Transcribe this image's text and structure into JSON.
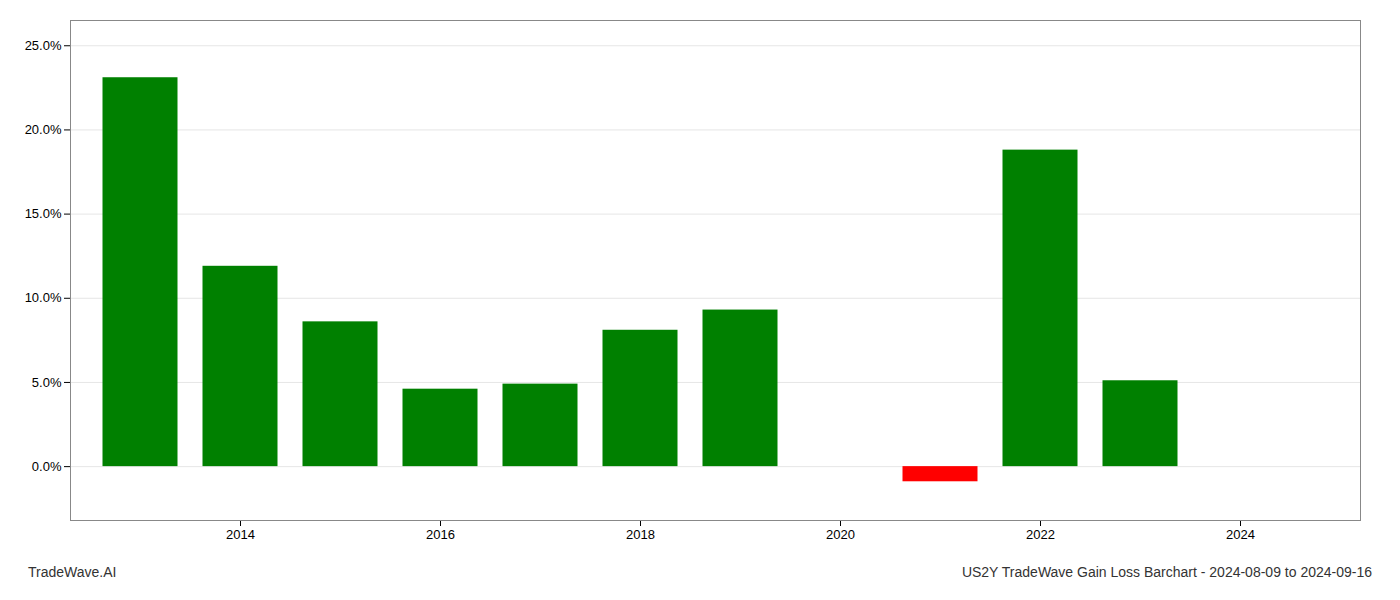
{
  "chart_data": {
    "type": "bar",
    "x": [
      2013,
      2014,
      2015,
      2016,
      2017,
      2018,
      2019,
      2021,
      2022,
      2023
    ],
    "values": [
      0.231,
      0.119,
      0.086,
      0.046,
      0.049,
      0.081,
      0.093,
      -0.009,
      0.188,
      0.051
    ],
    "colors": [
      "#008000",
      "#008000",
      "#008000",
      "#008000",
      "#008000",
      "#008000",
      "#008000",
      "#ff0000",
      "#008000",
      "#008000"
    ],
    "xlim": [
      2012.3,
      2025.2
    ],
    "xticks": [
      2014,
      2016,
      2018,
      2020,
      2022,
      2024
    ],
    "ylim": [
      -0.032,
      0.265
    ],
    "yticks": [
      {
        "value": 0.0,
        "label": "0.0%"
      },
      {
        "value": 0.05,
        "label": "5.0%"
      },
      {
        "value": 0.1,
        "label": "10.0%"
      },
      {
        "value": 0.15,
        "label": "15.0%"
      },
      {
        "value": 0.2,
        "label": "20.0%"
      },
      {
        "value": 0.25,
        "label": "25.0%"
      }
    ],
    "grid": true,
    "annotations": [
      "TradeWave.AI",
      "US2Y TradeWave Gain Loss Barchart - 2024-08-09 to 2024-09-16"
    ]
  }
}
